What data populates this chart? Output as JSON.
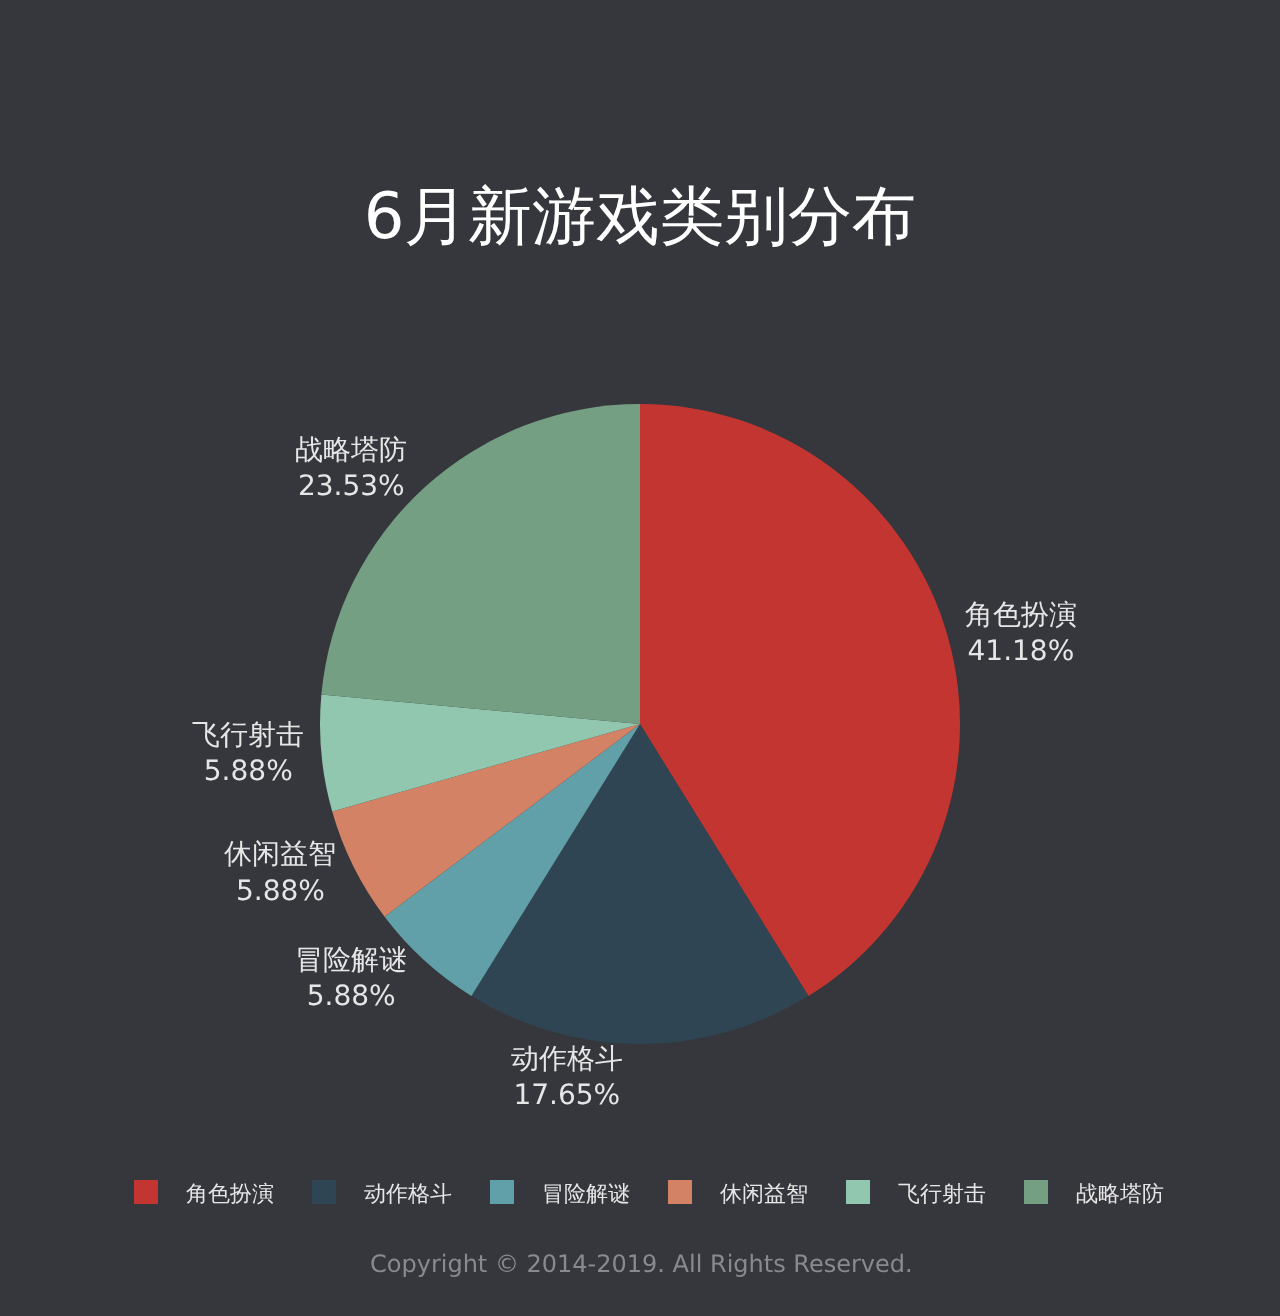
{
  "chart_data": {
    "type": "pie",
    "title": "6月新游戏类别分布",
    "categories": [
      "角色扮演",
      "动作格斗",
      "冒险解谜",
      "休闲益智",
      "飞行射击",
      "战略塔防"
    ],
    "values": [
      41.18,
      17.65,
      5.88,
      5.88,
      5.88,
      23.53
    ],
    "value_labels": [
      "41.18%",
      "17.65%",
      "5.88%",
      "5.88%",
      "5.88%",
      "23.53%"
    ],
    "colors": [
      "#c23531",
      "#2f4554",
      "#61a0a8",
      "#d48265",
      "#91c7ae",
      "#749f83"
    ],
    "legend": "bottom",
    "annotations": [
      "Copyright © 2014-2019. All Rights Reserved."
    ]
  }
}
